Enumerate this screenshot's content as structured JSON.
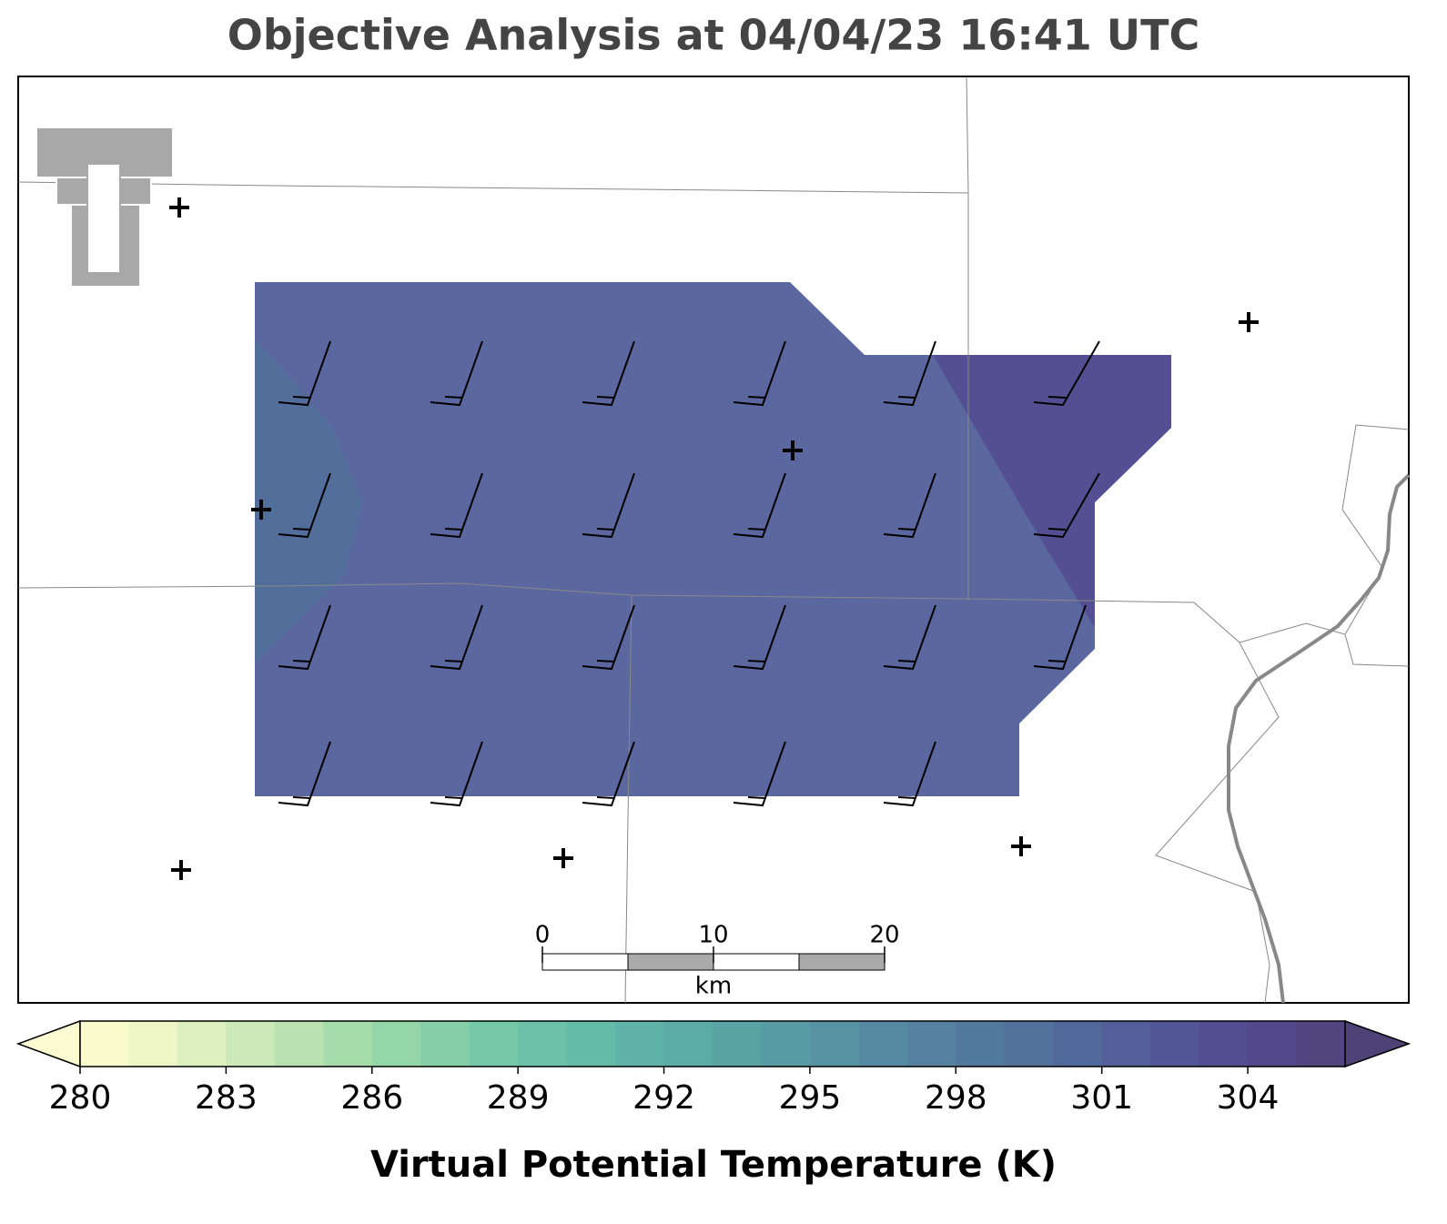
{
  "chart_data": {
    "type": "map",
    "title": "Objective Analysis at 04/04/23 16:41 UTC",
    "colorbar": {
      "label": "Virtual Potential Temperature (K)",
      "levels": [
        280,
        281,
        282,
        283,
        284,
        285,
        286,
        287,
        288,
        289,
        290,
        291,
        292,
        293,
        294,
        295,
        296,
        297,
        298,
        299,
        300,
        301,
        302,
        303,
        304,
        305,
        306
      ],
      "ticks": [
        280,
        283,
        286,
        289,
        292,
        295,
        298,
        301,
        304
      ],
      "colors": [
        "#fafbcc",
        "#eef6c5",
        "#dcf0bf",
        "#cce9b8",
        "#b9e2b0",
        "#a6dcab",
        "#94d6a8",
        "#84cfa8",
        "#76c9a8",
        "#6bc2a8",
        "#64bba8",
        "#5fb3a8",
        "#5baba6",
        "#59a3a5",
        "#579ba4",
        "#5693a3",
        "#568aa2",
        "#5482a0",
        "#53799e",
        "#52709c",
        "#52689b",
        "#525f9a",
        "#525697",
        "#534e91",
        "#534889",
        "#52447e"
      ],
      "under_color": "#fbfbd2",
      "over_color": "#4e4277"
    },
    "analysis_regions": [
      301,
      299,
      303
    ],
    "scale_bar": {
      "ticks": [
        0,
        10,
        20
      ],
      "unit": "km"
    }
  }
}
